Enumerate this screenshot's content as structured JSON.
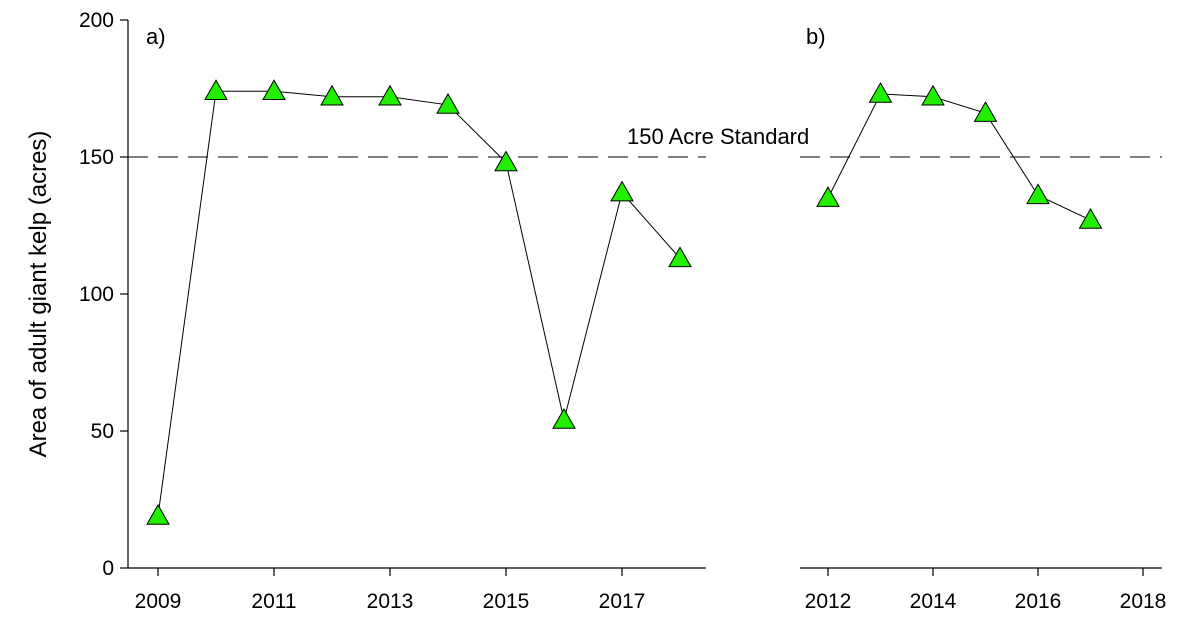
{
  "chart_data": [
    {
      "type": "line",
      "panel_label": "a)",
      "ylabel": "Area of adult giant kelp (acres)",
      "ylim": [
        0,
        200
      ],
      "yticks": [
        0,
        50,
        100,
        150,
        200
      ],
      "xlim": [
        2009,
        2018
      ],
      "xticks": [
        2009,
        2011,
        2013,
        2015,
        2017
      ],
      "x": [
        2009,
        2010,
        2011,
        2012,
        2013,
        2014,
        2015,
        2016,
        2017,
        2018
      ],
      "values": [
        19,
        174,
        174,
        172,
        172,
        169,
        148,
        54,
        137,
        113
      ],
      "reference_line": {
        "value": 150,
        "label": "150 Acre Standard"
      },
      "marker": "triangle",
      "marker_color": "#22ee00"
    },
    {
      "type": "line",
      "panel_label": "b)",
      "ylim": [
        0,
        200
      ],
      "xlim": [
        2012,
        2018
      ],
      "xticks": [
        2012,
        2014,
        2016,
        2018
      ],
      "x": [
        2012,
        2013,
        2014,
        2015,
        2016,
        2017
      ],
      "values": [
        135,
        173,
        172,
        166,
        136,
        127
      ],
      "reference_line": {
        "value": 150
      },
      "marker": "triangle",
      "marker_color": "#22ee00"
    }
  ]
}
